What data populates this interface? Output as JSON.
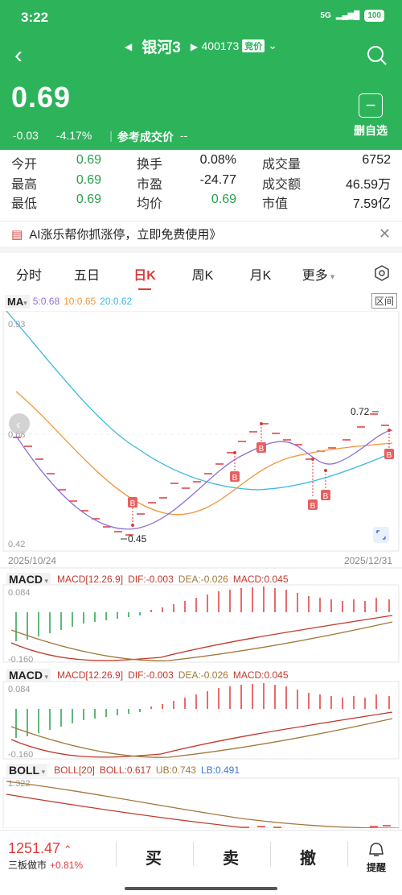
{
  "status": {
    "time": "3:22",
    "network": "5G",
    "battery": "100"
  },
  "header": {
    "title": "银河3",
    "code": "400173",
    "code_tag": "竞价",
    "price": "0.69",
    "change": "-0.03",
    "change_pct": "-4.17%",
    "ref_label": "参考成交价",
    "ref_value": "--",
    "fav_label": "删自选"
  },
  "stats": [
    [
      {
        "k": "今开",
        "v": "0.69"
      },
      {
        "k": "换手",
        "v": "0.08%"
      },
      {
        "k": "成交量",
        "v": "6752"
      }
    ],
    [
      {
        "k": "最高",
        "v": "0.69"
      },
      {
        "k": "市盈",
        "v": "-24.77"
      },
      {
        "k": "成交额",
        "v": "46.59万"
      }
    ],
    [
      {
        "k": "最低",
        "v": "0.69"
      },
      {
        "k": "均价",
        "v": "0.69"
      },
      {
        "k": "市值",
        "v": "7.59亿"
      }
    ]
  ],
  "banner": {
    "text": "AI涨乐帮你抓涨停，立即免费使用》"
  },
  "tabs": [
    "分时",
    "五日",
    "日K",
    "周K",
    "月K",
    "更多"
  ],
  "ma": {
    "label": "MA",
    "ma5": "5:0.68",
    "ma10": "10:0.65",
    "ma20": "20:0.62",
    "interval": "区间"
  },
  "kline": {
    "y_top": "0.93",
    "y_mid": "0.68",
    "y_bot": "0.42",
    "low_mark": "0.45",
    "high_mark": "0.72",
    "date_start": "2025/10/24",
    "date_end": "2025/12/31",
    "marker_letter": "B"
  },
  "macd1": {
    "label": "MACD",
    "params": "MACD[12.26.9]",
    "dif": "DIF:-0.003",
    "dea": "DEA:-0.026",
    "macd": "MACD:0.045",
    "y_top": "0.084",
    "y_bot": "-0.160"
  },
  "macd2": {
    "label": "MACD",
    "params": "MACD[12.26.9]",
    "dif": "DIF:-0.003",
    "dea": "DEA:-0.026",
    "macd": "MACD:0.045",
    "y_top": "0.084",
    "y_bot": "-0.160"
  },
  "boll": {
    "label": "BOLL",
    "params": "BOLL[20]",
    "boll": "BOLL:0.617",
    "ub": "UB:0.743",
    "lb": "LB:0.491",
    "y_top": "1.322"
  },
  "bottom": {
    "index_value": "1251.47",
    "index_name": "三板做市",
    "index_change": "+0.81%",
    "buy": "买",
    "sell": "卖",
    "cancel": "撤",
    "remind": "提醒"
  },
  "colors": {
    "green": "#2db35a",
    "red": "#e03a3a",
    "ma5": "#8e6fd6",
    "ma10": "#f0963c",
    "ma20": "#3cb9e0"
  }
}
